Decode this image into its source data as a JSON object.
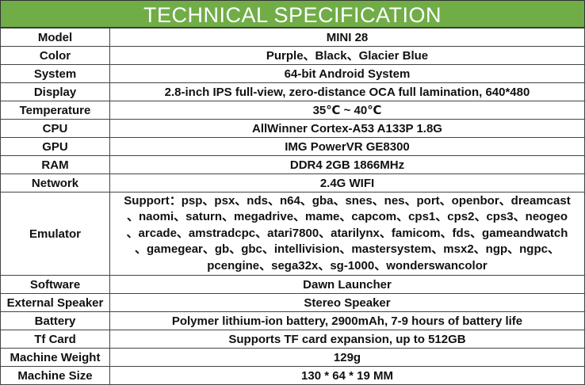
{
  "title": "TECHNICAL SPECIFICATION",
  "accent_color": "#70ad47",
  "rows": [
    {
      "label": "Model",
      "value": "MINI 28"
    },
    {
      "label": "Color",
      "value": "Purple、Black、Glacier Blue"
    },
    {
      "label": "System",
      "value": "64-bit Android System"
    },
    {
      "label": "Display",
      "value": "2.8-inch IPS full-view, zero-distance OCA full lamination, 640*480"
    },
    {
      "label": "Temperature",
      "value": "35℃ ~ 40℃"
    },
    {
      "label": "CPU",
      "value": "AllWinner Cortex-A53 A133P 1.8G"
    },
    {
      "label": "GPU",
      "value": "IMG PowerVR GE8300"
    },
    {
      "label": "RAM",
      "value": "DDR4 2GB 1866MHz"
    },
    {
      "label": "Network",
      "value": "2.4G WIFI"
    }
  ],
  "emulator": {
    "label": "Emulator",
    "lines": [
      "Support：psp、psx、nds、n64、gba、snes、nes、port、openbor、dreamcast",
      "、naomi、saturn、megadrive、mame、capcom、cps1、cps2、cps3、neogeo",
      "、arcade、amstradcpc、atari7800、atarilynx、famicom、fds、gameandwatch",
      "、gamegear、gb、gbc、intellivision、mastersystem、msx2、ngp、ngpc、",
      "pcengine、sega32x、sg-1000、wonderswancolor"
    ]
  },
  "rows2": [
    {
      "label": "Software",
      "value": "Dawn Launcher"
    },
    {
      "label": "External Speaker",
      "value": "Stereo Speaker"
    },
    {
      "label": "Battery",
      "value": "Polymer lithium-ion battery, 2900mAh, 7-9 hours of battery life"
    },
    {
      "label": "Tf Card",
      "value": "Supports TF card expansion, up to 512GB"
    },
    {
      "label": "Machine Weight",
      "value": "129g"
    },
    {
      "label": "Machine Size",
      "value": "130 * 64 * 19 MM"
    }
  ]
}
